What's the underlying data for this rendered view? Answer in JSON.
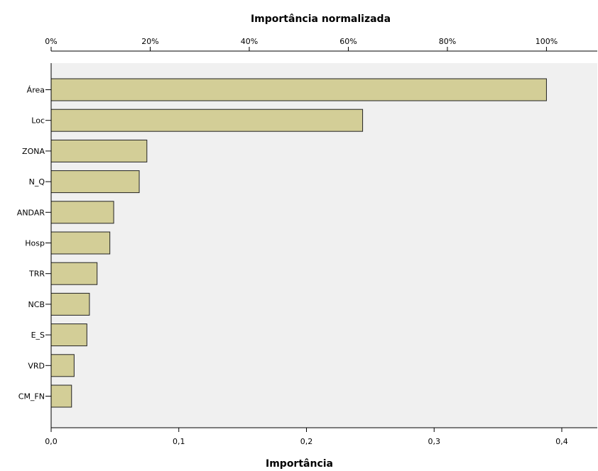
{
  "chart_data": {
    "type": "bar",
    "orientation": "horizontal",
    "categories": [
      "Área",
      "Loc",
      "ZONA",
      "N_Q",
      "ANDAR",
      "Hosp",
      "TRR",
      "NCB",
      "E_S",
      "VRD",
      "CM_FN"
    ],
    "values": [
      0.388,
      0.244,
      0.075,
      0.069,
      0.049,
      0.046,
      0.036,
      0.03,
      0.028,
      0.018,
      0.016
    ],
    "xlabel": "Importância",
    "x2label": "Importância normalizada",
    "xlim": [
      0,
      0.425
    ],
    "xticks": [
      0,
      0.1,
      0.2,
      0.3,
      0.4
    ],
    "xtick_labels": [
      "0,0",
      "0,1",
      "0,2",
      "0,3",
      "0,4"
    ],
    "x2ticks": [
      0,
      20,
      40,
      60,
      80,
      100
    ],
    "x2tick_labels": [
      "0%",
      "20%",
      "40%",
      "60%",
      "80%",
      "100%"
    ],
    "grid": false,
    "legend": "none",
    "colors": {
      "bar_fill": "#D3CE97",
      "bar_stroke": "#222222",
      "plot_background": "#F0F0F0",
      "axis": "#000000"
    }
  }
}
